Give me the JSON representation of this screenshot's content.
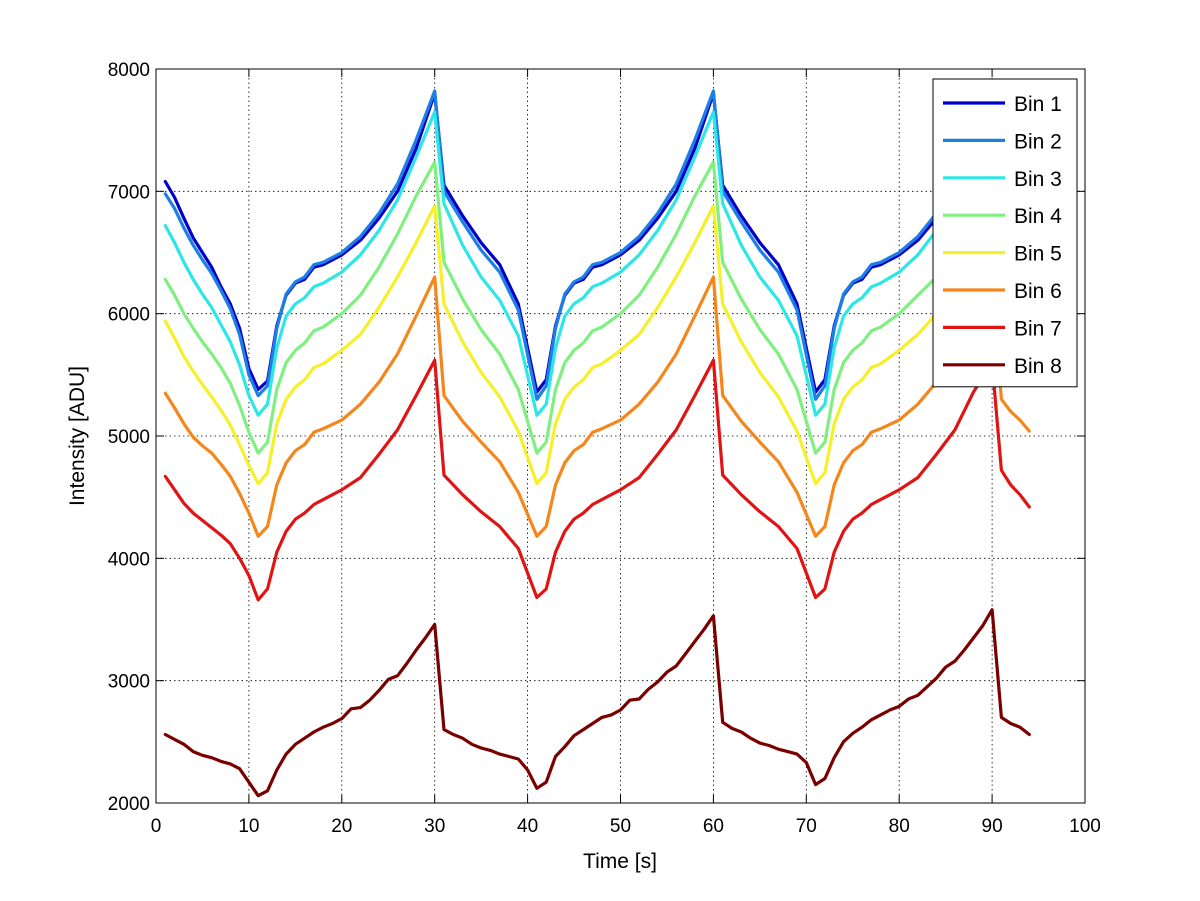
{
  "chart_data": {
    "type": "line",
    "title": "",
    "xlabel": "Time [s]",
    "ylabel": "Intensity [ADU]",
    "xlim": [
      0,
      100
    ],
    "ylim": [
      2000,
      8000
    ],
    "xticks": [
      0,
      10,
      20,
      30,
      40,
      50,
      60,
      70,
      80,
      90,
      100
    ],
    "yticks": [
      2000,
      3000,
      4000,
      5000,
      6000,
      7000,
      8000
    ],
    "grid": true,
    "legend_position": "top-right",
    "series": [
      {
        "name": "Bin 1",
        "color": "#0000cc",
        "x": [
          1,
          2,
          3,
          4,
          5,
          6,
          7,
          8,
          9,
          10,
          11,
          12,
          13,
          14,
          15,
          16,
          17,
          18,
          20,
          22,
          24,
          26,
          28,
          30,
          31,
          33,
          35,
          37,
          39,
          41,
          42,
          43,
          44,
          45,
          46,
          47,
          48,
          50,
          52,
          54,
          56,
          58,
          60,
          61,
          63,
          65,
          67,
          69,
          71,
          72,
          73,
          74,
          75,
          76,
          77,
          78,
          80,
          82,
          84
        ],
        "y": [
          7080,
          6950,
          6780,
          6620,
          6500,
          6380,
          6220,
          6080,
          5880,
          5550,
          5380,
          5450,
          5900,
          6150,
          6250,
          6280,
          6380,
          6400,
          6480,
          6600,
          6780,
          7000,
          7350,
          7800,
          7050,
          6800,
          6580,
          6400,
          6080,
          5360,
          5460,
          5900,
          6150,
          6250,
          6280,
          6380,
          6400,
          6480,
          6600,
          6780,
          7000,
          7350,
          7800,
          7050,
          6800,
          6580,
          6400,
          6080,
          5360,
          5460,
          5900,
          6150,
          6250,
          6280,
          6380,
          6400,
          6480,
          6600,
          6780
        ]
      },
      {
        "name": "Bin 2",
        "color": "#1c7fe6",
        "x": [
          1,
          2,
          3,
          4,
          5,
          6,
          7,
          8,
          9,
          10,
          11,
          12,
          13,
          14,
          15,
          16,
          17,
          18,
          20,
          22,
          24,
          26,
          28,
          30,
          31,
          33,
          35,
          37,
          39,
          41,
          42,
          43,
          44,
          45,
          46,
          47,
          48,
          50,
          52,
          54,
          56,
          58,
          60,
          61,
          63,
          65,
          67,
          69,
          71,
          72,
          73,
          74,
          75,
          76,
          77,
          78,
          80,
          82,
          84
        ],
        "y": [
          6980,
          6860,
          6700,
          6560,
          6440,
          6330,
          6190,
          6040,
          5830,
          5500,
          5330,
          5410,
          5880,
          6160,
          6260,
          6300,
          6400,
          6420,
          6500,
          6630,
          6820,
          7060,
          7420,
          7820,
          7000,
          6750,
          6520,
          6340,
          6030,
          5300,
          5410,
          5880,
          6160,
          6260,
          6300,
          6400,
          6420,
          6500,
          6630,
          6820,
          7060,
          7420,
          7820,
          7000,
          6750,
          6520,
          6340,
          6030,
          5300,
          5410,
          5880,
          6160,
          6260,
          6300,
          6400,
          6420,
          6500,
          6630,
          6820
        ]
      },
      {
        "name": "Bin 3",
        "color": "#2ee6e6",
        "x": [
          1,
          2,
          3,
          4,
          5,
          6,
          7,
          8,
          9,
          10,
          11,
          12,
          13,
          14,
          15,
          16,
          17,
          18,
          20,
          22,
          24,
          26,
          28,
          30,
          31,
          33,
          35,
          37,
          39,
          41,
          42,
          43,
          44,
          45,
          46,
          47,
          48,
          50,
          52,
          54,
          56,
          58,
          60,
          61,
          63,
          65,
          67,
          69,
          71,
          72,
          73,
          74,
          75,
          76,
          77,
          78,
          80,
          82,
          84
        ],
        "y": [
          6720,
          6580,
          6420,
          6280,
          6160,
          6050,
          5910,
          5770,
          5580,
          5330,
          5170,
          5260,
          5720,
          5980,
          6080,
          6130,
          6220,
          6250,
          6340,
          6480,
          6680,
          6930,
          7280,
          7650,
          6900,
          6560,
          6300,
          6110,
          5820,
          5170,
          5260,
          5720,
          5980,
          6080,
          6130,
          6220,
          6250,
          6340,
          6480,
          6680,
          6930,
          7280,
          7650,
          6900,
          6560,
          6300,
          6110,
          5820,
          5170,
          5260,
          5720,
          5980,
          6080,
          6130,
          6220,
          6250,
          6340,
          6480,
          6680
        ]
      },
      {
        "name": "Bin 4",
        "color": "#7ff07f",
        "x": [
          1,
          2,
          3,
          4,
          5,
          6,
          7,
          8,
          9,
          10,
          11,
          12,
          13,
          14,
          15,
          16,
          17,
          18,
          20,
          22,
          24,
          26,
          28,
          30,
          31,
          33,
          35,
          37,
          39,
          41,
          42,
          43,
          44,
          45,
          46,
          47,
          48,
          50,
          52,
          54,
          56,
          58,
          60,
          61,
          63,
          65,
          67,
          69,
          71,
          72,
          73,
          74,
          75,
          76,
          77,
          78,
          80,
          82,
          84
        ],
        "y": [
          6280,
          6150,
          6000,
          5880,
          5770,
          5670,
          5560,
          5430,
          5250,
          5030,
          4860,
          4950,
          5380,
          5600,
          5700,
          5760,
          5860,
          5890,
          6000,
          6150,
          6380,
          6650,
          6960,
          7240,
          6420,
          6120,
          5870,
          5670,
          5380,
          4860,
          4950,
          5380,
          5600,
          5700,
          5760,
          5860,
          5890,
          6000,
          6150,
          6380,
          6650,
          6960,
          7240,
          6420,
          6120,
          5870,
          5670,
          5380,
          4860,
          4950,
          5380,
          5600,
          5700,
          5760,
          5860,
          5890,
          6000,
          6150,
          6300
        ]
      },
      {
        "name": "Bin 5",
        "color": "#f5f02a",
        "x": [
          1,
          2,
          3,
          4,
          5,
          6,
          7,
          8,
          9,
          10,
          11,
          12,
          13,
          14,
          15,
          16,
          17,
          18,
          20,
          22,
          24,
          26,
          28,
          30,
          31,
          33,
          35,
          37,
          39,
          41,
          42,
          43,
          44,
          45,
          46,
          47,
          48,
          50,
          52,
          54,
          56,
          58,
          60,
          61,
          63,
          65,
          67,
          69,
          71,
          72,
          73,
          74,
          75,
          76,
          77,
          78,
          80,
          82,
          84
        ],
        "y": [
          5940,
          5800,
          5650,
          5530,
          5420,
          5320,
          5210,
          5090,
          4930,
          4760,
          4610,
          4700,
          5100,
          5300,
          5400,
          5460,
          5560,
          5590,
          5700,
          5830,
          6050,
          6300,
          6580,
          6880,
          6080,
          5770,
          5520,
          5320,
          5040,
          4610,
          4700,
          5100,
          5300,
          5400,
          5460,
          5560,
          5590,
          5700,
          5830,
          6050,
          6300,
          6580,
          6880,
          6080,
          5770,
          5520,
          5320,
          5040,
          4610,
          4700,
          5100,
          5300,
          5400,
          5460,
          5560,
          5590,
          5700,
          5830,
          6000
        ]
      },
      {
        "name": "Bin 6",
        "color": "#f5861c",
        "x": [
          1,
          2,
          3,
          4,
          5,
          6,
          7,
          8,
          9,
          10,
          11,
          12,
          13,
          14,
          15,
          16,
          17,
          18,
          20,
          22,
          24,
          26,
          28,
          30,
          31,
          33,
          35,
          37,
          39,
          41,
          42,
          43,
          44,
          45,
          46,
          47,
          48,
          50,
          52,
          54,
          56,
          58,
          60,
          61,
          63,
          65,
          67,
          69,
          71,
          72,
          73,
          74,
          75,
          76,
          77,
          78,
          80,
          82,
          84,
          90,
          91,
          92,
          93,
          94
        ],
        "y": [
          5350,
          5230,
          5100,
          4990,
          4920,
          4860,
          4770,
          4670,
          4530,
          4370,
          4180,
          4260,
          4600,
          4780,
          4880,
          4930,
          5030,
          5060,
          5130,
          5260,
          5440,
          5670,
          5980,
          6300,
          5330,
          5120,
          4950,
          4790,
          4540,
          4180,
          4260,
          4600,
          4780,
          4880,
          4930,
          5030,
          5060,
          5130,
          5260,
          5440,
          5670,
          5980,
          6300,
          5330,
          5120,
          4950,
          4790,
          4540,
          4180,
          4260,
          4600,
          4780,
          4880,
          4930,
          5030,
          5060,
          5130,
          5260,
          5440,
          6250,
          5300,
          5200,
          5130,
          5040
        ]
      },
      {
        "name": "Bin 7",
        "color": "#e01414",
        "x": [
          1,
          2,
          3,
          4,
          5,
          6,
          7,
          8,
          9,
          10,
          11,
          12,
          13,
          14,
          15,
          16,
          17,
          18,
          20,
          22,
          24,
          26,
          28,
          30,
          31,
          33,
          35,
          37,
          39,
          41,
          42,
          43,
          44,
          45,
          46,
          47,
          48,
          50,
          52,
          54,
          56,
          58,
          60,
          61,
          63,
          65,
          67,
          69,
          71,
          72,
          73,
          74,
          75,
          76,
          77,
          78,
          80,
          82,
          84,
          86,
          88,
          89,
          90,
          91,
          92,
          93,
          94
        ],
        "y": [
          4670,
          4560,
          4450,
          4370,
          4310,
          4250,
          4190,
          4120,
          4000,
          3860,
          3660,
          3750,
          4050,
          4220,
          4320,
          4370,
          4440,
          4480,
          4560,
          4660,
          4850,
          5050,
          5330,
          5620,
          4680,
          4520,
          4380,
          4260,
          4080,
          3680,
          3750,
          4050,
          4220,
          4320,
          4370,
          4440,
          4480,
          4560,
          4660,
          4850,
          5050,
          5330,
          5620,
          4680,
          4520,
          4380,
          4260,
          4080,
          3680,
          3750,
          4050,
          4220,
          4320,
          4370,
          4440,
          4480,
          4560,
          4660,
          4850,
          5050,
          5360,
          5480,
          5600,
          4720,
          4600,
          4520,
          4420
        ]
      },
      {
        "name": "Bin 8",
        "color": "#7a0000",
        "x": [
          1,
          2,
          3,
          4,
          5,
          6,
          7,
          8,
          9,
          10,
          11,
          12,
          13,
          14,
          15,
          16,
          17,
          18,
          19,
          20,
          21,
          22,
          23,
          24,
          25,
          26,
          27,
          28,
          29,
          30,
          31,
          32,
          33,
          34,
          35,
          36,
          37,
          38,
          39,
          40,
          41,
          42,
          43,
          44,
          45,
          46,
          47,
          48,
          49,
          50,
          51,
          52,
          53,
          54,
          55,
          56,
          57,
          58,
          59,
          60,
          61,
          62,
          63,
          64,
          65,
          66,
          67,
          68,
          69,
          70,
          71,
          72,
          73,
          74,
          75,
          76,
          77,
          78,
          79,
          80,
          81,
          82,
          83,
          84,
          85,
          86,
          87,
          88,
          89,
          90,
          91,
          92,
          93,
          94
        ],
        "y": [
          2560,
          2520,
          2480,
          2420,
          2390,
          2370,
          2340,
          2320,
          2280,
          2170,
          2060,
          2100,
          2270,
          2400,
          2480,
          2530,
          2580,
          2620,
          2650,
          2690,
          2770,
          2780,
          2840,
          2920,
          3010,
          3040,
          3140,
          3250,
          3350,
          3460,
          2600,
          2560,
          2530,
          2480,
          2450,
          2430,
          2400,
          2380,
          2360,
          2270,
          2120,
          2170,
          2380,
          2460,
          2550,
          2600,
          2650,
          2700,
          2720,
          2760,
          2840,
          2850,
          2930,
          2990,
          3070,
          3120,
          3220,
          3320,
          3420,
          3530,
          2660,
          2610,
          2580,
          2530,
          2490,
          2470,
          2440,
          2420,
          2400,
          2330,
          2150,
          2200,
          2370,
          2500,
          2570,
          2620,
          2680,
          2720,
          2760,
          2790,
          2850,
          2880,
          2950,
          3020,
          3110,
          3160,
          3250,
          3350,
          3450,
          3580,
          2700,
          2650,
          2620,
          2560
        ]
      }
    ]
  }
}
